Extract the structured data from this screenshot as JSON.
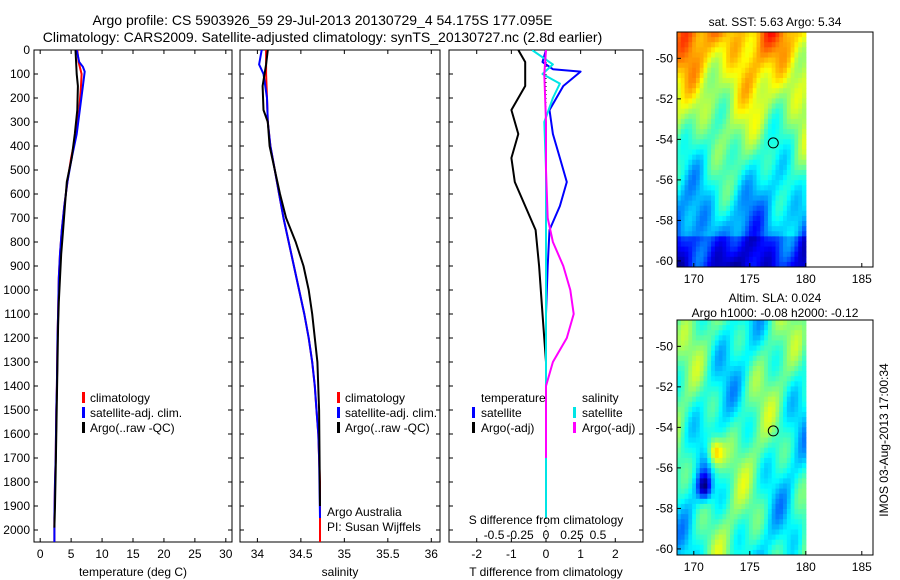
{
  "figure": {
    "title_line1": "Argo profile: CS 5903926_59 29-Jul-2013 20130729_4 54.175S 177.095E",
    "title_line2": "Climatology: CARS2009. Satellite-adjusted climatology: synTS_20130727.nc (2.8d earlier)",
    "footer_stamp": "IMOS 03-Aug-2013 17:00:34"
  },
  "chart_data": [
    {
      "type": "line",
      "panel": "temperature",
      "xlabel": "temperature (deg C)",
      "ylabel": "",
      "xlim": [
        -1,
        31
      ],
      "ylim": [
        2050,
        0
      ],
      "xticks": [
        0,
        5,
        10,
        15,
        20,
        25,
        30
      ],
      "yticks": [
        0,
        100,
        200,
        300,
        400,
        500,
        600,
        700,
        800,
        900,
        1000,
        1100,
        1200,
        1300,
        1400,
        1500,
        1600,
        1700,
        1800,
        1900,
        2000
      ],
      "legend": {
        "placement": "bottom-center",
        "entries": [
          "climatology",
          "satellite-adj. clim.",
          "Argo(..raw -QC)"
        ]
      },
      "series": [
        {
          "name": "climatology",
          "color": "#ff0000",
          "x": [
            6.0,
            6.2,
            6.5,
            6.7,
            6.6,
            6.3,
            5.8,
            5.0,
            4.4,
            3.9,
            3.5,
            3.2,
            3.0,
            2.9,
            2.8,
            2.7,
            2.6,
            2.5,
            2.4,
            2.3,
            2.3
          ],
          "y": [
            0,
            50,
            80,
            100,
            150,
            250,
            350,
            450,
            550,
            650,
            750,
            850,
            950,
            1100,
            1200,
            1400,
            1500,
            1700,
            1800,
            1950,
            2050
          ]
        },
        {
          "name": "satellite-adj. clim.",
          "color": "#0000ff",
          "x": [
            5.9,
            6.3,
            6.9,
            7.2,
            6.9,
            6.4,
            5.9,
            5.1,
            4.4,
            3.9,
            3.5,
            3.2,
            3.0,
            2.9,
            2.8,
            2.7,
            2.6,
            2.5,
            2.4,
            2.3,
            2.3
          ],
          "y": [
            0,
            50,
            70,
            90,
            150,
            250,
            350,
            450,
            550,
            650,
            750,
            850,
            950,
            1100,
            1200,
            1400,
            1500,
            1700,
            1800,
            1950,
            2050
          ]
        },
        {
          "name": "Argo(..raw -QC)",
          "color": "#000000",
          "x": [
            5.7,
            5.8,
            5.9,
            6.1,
            6.0,
            5.6,
            5.1,
            4.3,
            4.0,
            3.7,
            3.4,
            3.2,
            3.0,
            2.9,
            2.8,
            2.7,
            2.6,
            2.5,
            2.4,
            2.3
          ],
          "y": [
            0,
            50,
            100,
            150,
            250,
            350,
            450,
            550,
            650,
            750,
            850,
            950,
            1050,
            1150,
            1300,
            1450,
            1600,
            1750,
            1900,
            1990
          ]
        }
      ]
    },
    {
      "type": "line",
      "panel": "salinity",
      "xlabel": "salinity",
      "xlim": [
        33.8,
        36.1
      ],
      "ylim": [
        2050,
        0
      ],
      "xticks": [
        34,
        34.5,
        35,
        35.5,
        36
      ],
      "legend": {
        "placement": "bottom-right",
        "entries": [
          "climatology",
          "satellite-adj. clim.",
          "Argo(..raw -QC)"
        ]
      },
      "annotations": [
        "Argo Australia",
        "PI: Susan Wijffels"
      ],
      "series": [
        {
          "name": "climatology",
          "color": "#ff0000",
          "x": [
            34.1,
            34.1,
            34.11,
            34.12,
            34.15,
            34.2,
            34.25,
            34.3,
            34.36,
            34.42,
            34.48,
            34.54,
            34.59,
            34.63,
            34.66,
            34.68,
            34.7,
            34.71,
            34.72,
            34.72
          ],
          "y": [
            0,
            100,
            200,
            300,
            400,
            500,
            600,
            700,
            800,
            900,
            1000,
            1100,
            1200,
            1300,
            1400,
            1500,
            1600,
            1700,
            1800,
            2050
          ]
        },
        {
          "name": "satellite-adj. clim.",
          "color": "#0000ff",
          "x": [
            34.05,
            34.02,
            34.07,
            34.11,
            34.12,
            34.15,
            34.2,
            34.25,
            34.3,
            34.36,
            34.42,
            34.48,
            34.54,
            34.59,
            34.63,
            34.66,
            34.68,
            34.7,
            34.71,
            34.72
          ],
          "y": [
            0,
            60,
            100,
            200,
            300,
            400,
            500,
            600,
            700,
            800,
            900,
            1000,
            1100,
            1200,
            1300,
            1400,
            1500,
            1600,
            1700,
            1950
          ]
        },
        {
          "name": "Argo(..raw -QC)",
          "color": "#000000",
          "x": [
            34.12,
            34.1,
            34.06,
            34.07,
            34.12,
            34.14,
            34.2,
            34.26,
            34.33,
            34.44,
            34.53,
            34.59,
            34.63,
            34.66,
            34.69,
            34.71,
            34.72
          ],
          "y": [
            0,
            60,
            150,
            250,
            300,
            400,
            500,
            600,
            700,
            800,
            900,
            1000,
            1100,
            1200,
            1300,
            1500,
            1900
          ]
        }
      ]
    },
    {
      "type": "line",
      "panel": "differences",
      "xlabel": "T difference from climatology",
      "xlabel_secondary": "S difference from climatology",
      "xlim": [
        -2.8,
        2.8
      ],
      "ylim": [
        2050,
        0
      ],
      "xticks": [
        -2,
        -1,
        0,
        1,
        2
      ],
      "xticks_secondary": [
        "-0.5",
        "-0.25",
        "0",
        "0.25",
        "0.5"
      ],
      "legend": {
        "placement": "bottom",
        "headers": [
          "temperature",
          "salinity"
        ],
        "entries": [
          "satellite",
          "Argo(-adj)",
          "satellite",
          "Argo(-adj)"
        ]
      },
      "series": [
        {
          "name": "satellite",
          "group": "temperature",
          "color": "#0000ff",
          "x": [
            0.0,
            -0.1,
            0.2,
            1.0,
            0.5,
            0.1,
            0.2,
            0.4,
            0.6,
            0.4,
            0.1,
            0.05,
            0.0,
            0.0,
            0.0,
            0.0,
            0.0
          ],
          "y": [
            0,
            50,
            80,
            90,
            150,
            250,
            350,
            450,
            550,
            650,
            750,
            900,
            1100,
            1300,
            1500,
            1700,
            1900
          ]
        },
        {
          "name": "Argo(-adj)",
          "group": "temperature",
          "color": "#000000",
          "x": [
            -0.8,
            -0.6,
            -0.6,
            -1.0,
            -0.8,
            -1.0,
            -0.9,
            -0.6,
            -0.3,
            -0.2,
            -0.1,
            0.0,
            0.0,
            0.0
          ],
          "y": [
            0,
            50,
            150,
            250,
            350,
            450,
            550,
            650,
            750,
            900,
            1100,
            1300,
            1600,
            1900
          ]
        },
        {
          "name": "satellite",
          "group": "salinity",
          "color": "#00e5e5",
          "x": [
            -0.4,
            0.2,
            -0.1,
            0.4,
            0.2,
            -0.05,
            0.0,
            0.0,
            0.0,
            0.0,
            0.0,
            0.0,
            0.0
          ],
          "y": [
            0,
            60,
            100,
            140,
            200,
            300,
            500,
            800,
            1100,
            1400,
            1600,
            1800,
            1950
          ]
        },
        {
          "name": "Argo(-adj)",
          "group": "salinity",
          "color": "#ff00ff",
          "x": [
            0.0,
            -0.05,
            0.0,
            0.0,
            0.05,
            0.2,
            0.5,
            0.7,
            0.8,
            0.6,
            0.2,
            0.0,
            0.0
          ],
          "y": [
            0,
            100,
            300,
            500,
            700,
            800,
            900,
            1000,
            1100,
            1200,
            1300,
            1400,
            1700
          ]
        }
      ]
    },
    {
      "type": "heatmap",
      "panel": "sst_map",
      "title": "sat. SST: 5.63 Argo: 5.34",
      "xlim": [
        168.5,
        186
      ],
      "ylim": [
        -60.3,
        -48.7
      ],
      "xticks": [
        170,
        175,
        180,
        185
      ],
      "yticks": [
        -50,
        -52,
        -54,
        -56,
        -58,
        -60
      ],
      "marker": {
        "lon": 177.095,
        "lat": -54.175
      }
    },
    {
      "type": "heatmap",
      "panel": "sla_map",
      "title": "Altim. SLA: 0.024",
      "subtitle": "Argo h1000: -0.08 h2000: -0.12",
      "xlim": [
        168.5,
        186
      ],
      "ylim": [
        -60.3,
        -48.7
      ],
      "xticks": [
        170,
        175,
        180,
        185
      ],
      "yticks": [
        -50,
        -52,
        -54,
        -56,
        -58,
        -60
      ],
      "marker": {
        "lon": 177.095,
        "lat": -54.175
      }
    }
  ]
}
